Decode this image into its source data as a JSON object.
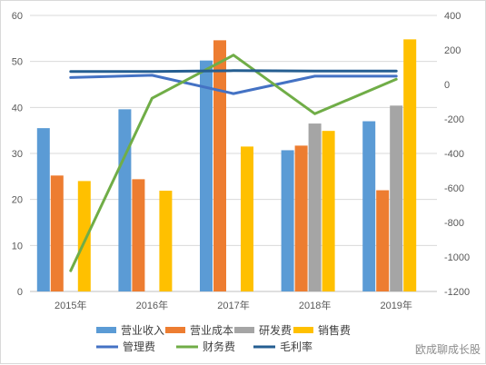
{
  "chart_data": {
    "type": "bar",
    "categories": [
      "2015年",
      "2016年",
      "2017年",
      "2018年",
      "2019年"
    ],
    "left_axis": {
      "min": 0,
      "max": 60,
      "step": 10,
      "ticks": [
        "0",
        "10",
        "20",
        "30",
        "40",
        "50",
        "60"
      ]
    },
    "right_axis": {
      "min": -1200,
      "max": 400,
      "step": 200,
      "ticks": [
        "-1200",
        "-1000",
        "-800",
        "-600",
        "-400",
        "-200",
        "0",
        "200",
        "400"
      ]
    },
    "grid": true,
    "legend_position": "bottom",
    "bar_series": [
      {
        "name": "营业收入",
        "color": "#5b9bd5",
        "values": [
          35.5,
          39.6,
          50.2,
          30.7,
          37.0
        ]
      },
      {
        "name": "营业成本",
        "color": "#ed7d31",
        "values": [
          25.2,
          24.4,
          54.6,
          31.7,
          22.0
        ]
      },
      {
        "name": "研发费",
        "color": "#a5a5a5",
        "values": [
          null,
          null,
          null,
          36.5,
          40.4
        ]
      },
      {
        "name": "销售费",
        "color": "#ffc000",
        "values": [
          24.0,
          21.9,
          31.5,
          34.9,
          54.8
        ]
      }
    ],
    "line_series": [
      {
        "name": "管理费",
        "color": "#4472c4",
        "axis": "left",
        "values": [
          46.5,
          47.0,
          43.0,
          46.8,
          46.8
        ]
      },
      {
        "name": "财务费",
        "color": "#70ad47",
        "axis": "right",
        "values": [
          -1080,
          -80,
          170,
          -170,
          30
        ]
      },
      {
        "name": "毛利率",
        "color": "#255e91",
        "axis": "left",
        "values": [
          47.8,
          47.8,
          48.0,
          47.9,
          47.9
        ]
      }
    ]
  },
  "legend": {
    "row1": [
      "营业收入",
      "营业成本",
      "研发费",
      "销售费"
    ],
    "row2": [
      "管理费",
      "财务费",
      "毛利率"
    ]
  },
  "watermark": "欧成聊成长股"
}
